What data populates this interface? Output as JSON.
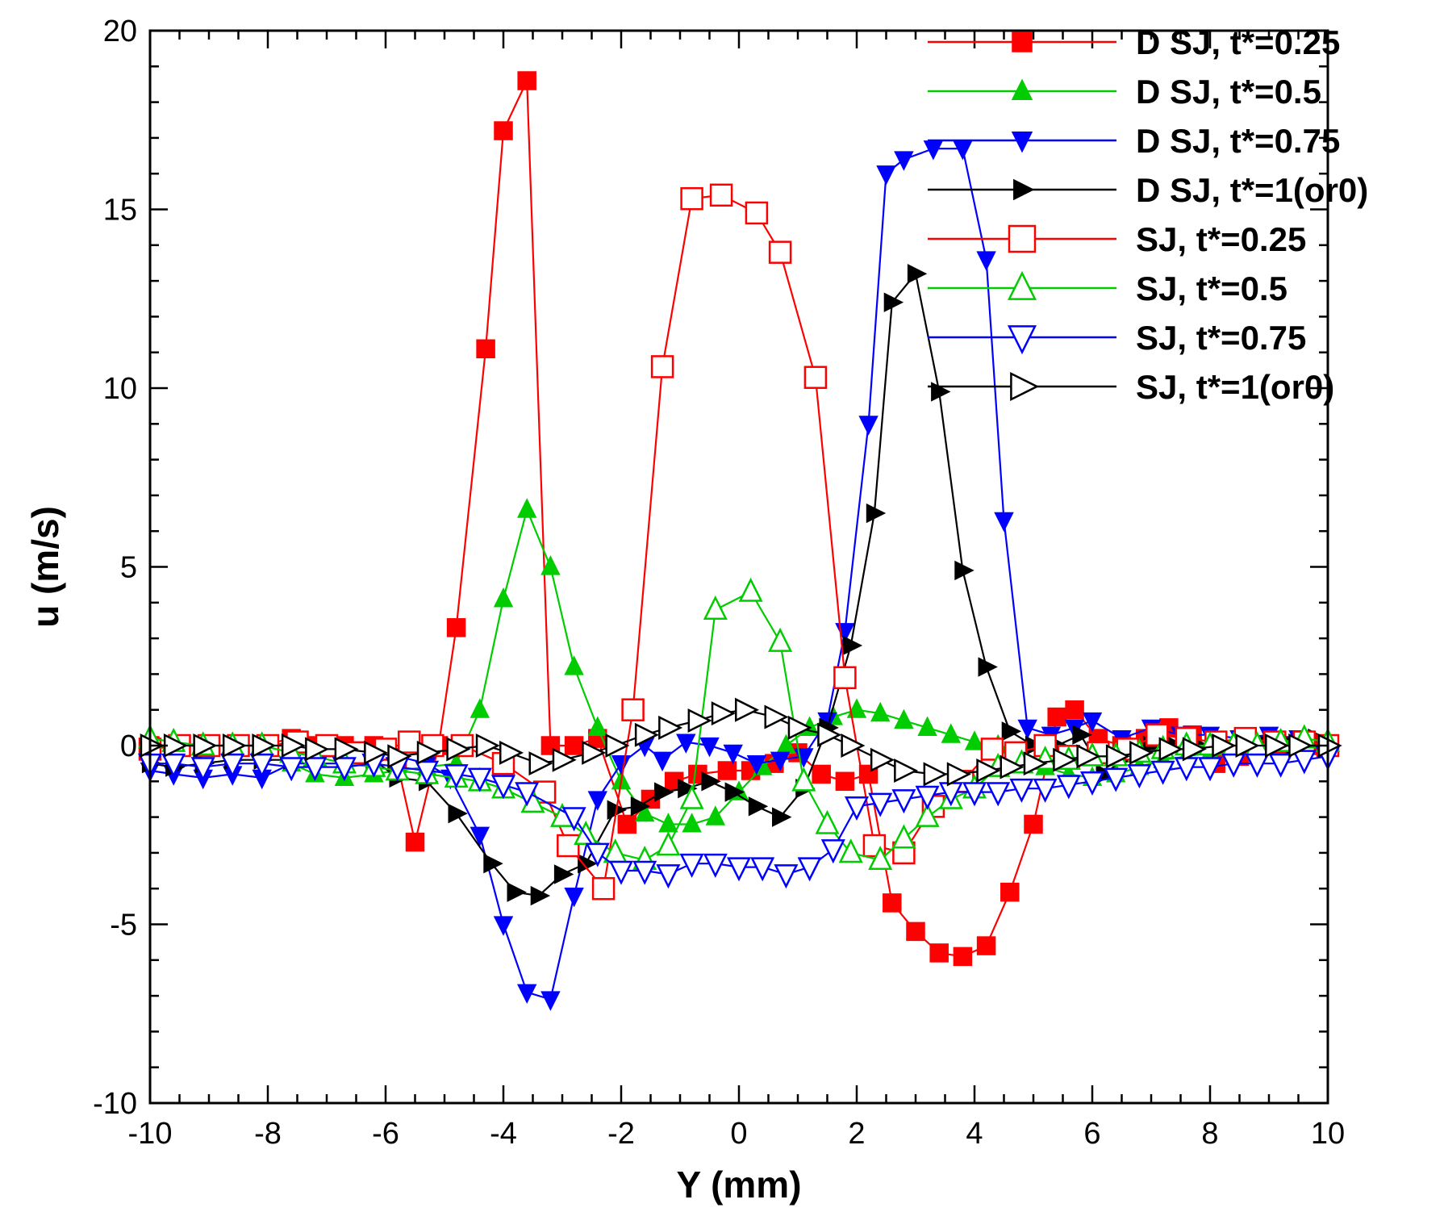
{
  "chart_data": {
    "type": "line",
    "title": "",
    "xlabel": "Y (mm)",
    "ylabel": "u (m/s)",
    "xlim": [
      -10,
      10
    ],
    "ylim": [
      -10,
      20
    ],
    "xticks": [
      -10,
      -8,
      -6,
      -4,
      -2,
      0,
      2,
      4,
      6,
      8,
      10
    ],
    "yticks": [
      -10,
      -5,
      0,
      5,
      10,
      15,
      20
    ],
    "grid": false,
    "legend_position": "top-right",
    "series": [
      {
        "name": "D SJ, t*=0.25",
        "color": "#ff0000",
        "marker": "square-filled",
        "x": [
          -10,
          -9.6,
          -9.1,
          -8.6,
          -8.1,
          -7.6,
          -7.2,
          -6.7,
          -6.2,
          -5.8,
          -5.5,
          -5.1,
          -4.8,
          -4.3,
          -4.0,
          -3.6,
          -3.2,
          -2.8,
          -2.4,
          -1.9,
          -1.5,
          -1.1,
          -0.7,
          -0.2,
          0.2,
          0.6,
          1.0,
          1.4,
          1.8,
          2.2,
          2.6,
          3.0,
          3.4,
          3.8,
          4.2,
          4.6,
          5.0,
          5.4,
          5.7,
          6.1,
          6.5,
          6.9,
          7.3,
          7.7,
          8.1,
          8.5,
          8.9,
          9.3,
          9.7,
          10
        ],
        "y": [
          0,
          0,
          0,
          0,
          0,
          0.2,
          0,
          0,
          0,
          -0.5,
          -2.7,
          0,
          3.3,
          11.1,
          17.2,
          18.6,
          0,
          0,
          0.2,
          -2.2,
          -1.5,
          -1.0,
          -0.8,
          -0.7,
          -0.7,
          -0.5,
          -0.2,
          -0.8,
          -1.0,
          -0.8,
          -4.4,
          -5.2,
          -5.8,
          -5.9,
          -5.6,
          -4.1,
          -2.2,
          0.8,
          1.0,
          0.2,
          0,
          0.2,
          0.5,
          0.3,
          -0.5,
          -0.3,
          0,
          0,
          0,
          0
        ]
      },
      {
        "name": "D SJ, t*=0.5",
        "color": "#00cc00",
        "marker": "triangle-up-filled",
        "x": [
          -10,
          -9.6,
          -9.1,
          -8.6,
          -8.1,
          -7.6,
          -7.2,
          -6.7,
          -6.2,
          -5.8,
          -5.3,
          -4.8,
          -4.4,
          -4.0,
          -3.6,
          -3.2,
          -2.8,
          -2.4,
          -2.0,
          -1.6,
          -1.2,
          -0.8,
          -0.4,
          0,
          0.4,
          0.8,
          1.2,
          1.6,
          2.0,
          2.4,
          2.8,
          3.2,
          3.6,
          4.0,
          4.4,
          4.8,
          5.2,
          5.6,
          6.0,
          6.4,
          6.8,
          7.2,
          7.6,
          8.0,
          8.4,
          8.8,
          9.2,
          9.6,
          10
        ],
        "y": [
          0,
          0,
          0,
          0,
          0,
          -0.5,
          -0.8,
          -0.9,
          -0.8,
          -0.7,
          -0.6,
          -0.5,
          1.0,
          4.1,
          6.6,
          5.0,
          2.2,
          0.5,
          -1.0,
          -1.9,
          -2.2,
          -2.2,
          -2.0,
          -1.3,
          -0.6,
          0,
          0.5,
          0.8,
          1.0,
          0.9,
          0.7,
          0.5,
          0.3,
          0.1,
          0,
          -0.4,
          -0.6,
          -0.8,
          -0.9,
          -0.8,
          -0.6,
          -0.4,
          -0.3,
          -0.2,
          -0.1,
          0,
          0,
          0,
          0
        ]
      },
      {
        "name": "D SJ, t*=0.75",
        "color": "#0000ff",
        "marker": "triangle-down-filled",
        "x": [
          -10,
          -9.6,
          -9.1,
          -8.6,
          -8.1,
          -7.6,
          -7.2,
          -6.7,
          -6.2,
          -5.8,
          -5.3,
          -4.9,
          -4.4,
          -4.0,
          -3.6,
          -3.2,
          -2.8,
          -2.4,
          -2.0,
          -1.6,
          -1.3,
          -0.9,
          -0.5,
          -0.1,
          0.3,
          0.7,
          1.1,
          1.5,
          1.8,
          2.2,
          2.5,
          2.8,
          3.3,
          3.8,
          4.2,
          4.5,
          4.9,
          5.3,
          5.7,
          6.0,
          6.5,
          7.0,
          7.5,
          8.0,
          8.5,
          9.0,
          9.5,
          10
        ],
        "y": [
          -0.7,
          -0.8,
          -0.9,
          -0.8,
          -0.9,
          -0.5,
          -0.5,
          -0.5,
          -0.3,
          -0.3,
          -0.5,
          -0.9,
          -2.5,
          -5.0,
          -6.9,
          -7.1,
          -4.2,
          -1.5,
          -0.5,
          0,
          -0.4,
          0.1,
          0,
          -0.2,
          -0.5,
          -0.4,
          -0.3,
          0.7,
          3.2,
          9.0,
          16.0,
          16.4,
          16.7,
          16.7,
          13.6,
          6.3,
          0.5,
          0.3,
          0.5,
          0.7,
          0.2,
          0.5,
          0.3,
          0.3,
          0.2,
          0.3,
          0.2,
          0
        ]
      },
      {
        "name": "D SJ, t*=1(or0)",
        "color": "#000000",
        "marker": "triangle-right-filled",
        "x": [
          -10,
          -9.6,
          -9.1,
          -8.6,
          -8.1,
          -7.6,
          -7.2,
          -6.7,
          -6.2,
          -5.8,
          -5.3,
          -4.8,
          -4.2,
          -3.8,
          -3.4,
          -3.0,
          -2.6,
          -2.1,
          -1.7,
          -1.3,
          -0.9,
          -0.5,
          -0.1,
          0.3,
          0.7,
          1.1,
          1.5,
          1.9,
          2.3,
          2.6,
          3.0,
          3.4,
          3.8,
          4.2,
          4.6,
          5.0,
          5.4,
          5.8,
          6.2,
          6.6,
          7.0,
          7.4,
          7.8,
          8.2,
          8.6,
          9.0,
          9.4,
          9.8
        ],
        "y": [
          -0.5,
          -0.6,
          -0.5,
          -0.4,
          -0.4,
          -0.4,
          -0.3,
          -0.3,
          -0.4,
          -0.9,
          -1.0,
          -1.9,
          -3.3,
          -4.1,
          -4.2,
          -3.6,
          -3.3,
          -1.8,
          -1.7,
          -1.3,
          -1.2,
          -1.0,
          -1.3,
          -1.7,
          -2.0,
          -1.2,
          0.5,
          2.8,
          6.5,
          12.4,
          13.2,
          9.9,
          4.9,
          2.2,
          0.4,
          0,
          0,
          0.3,
          -0.8,
          -0.3,
          0,
          0,
          0,
          0,
          0,
          0,
          0,
          0.2
        ]
      },
      {
        "name": "SJ, t*=0.25",
        "color": "#ff0000",
        "marker": "square-open",
        "x": [
          -10,
          -9.5,
          -9.0,
          -8.5,
          -8.0,
          -7.5,
          -7.0,
          -6.5,
          -6.0,
          -5.6,
          -5.2,
          -4.7,
          -4.0,
          -3.3,
          -2.9,
          -2.3,
          -1.8,
          -1.3,
          -0.8,
          -0.3,
          0.3,
          0.7,
          1.3,
          1.8,
          2.3,
          2.8,
          3.3,
          3.8,
          4.3,
          4.7,
          5.2,
          5.6,
          6.1,
          6.6,
          7.1,
          7.6,
          8.1,
          8.6,
          9.1,
          9.6,
          10
        ],
        "y": [
          -0.1,
          0,
          0,
          0,
          0,
          0.1,
          0,
          -0.2,
          -0.1,
          0.1,
          0,
          0,
          -0.5,
          -1.3,
          -2.8,
          -4.0,
          1.0,
          10.6,
          15.3,
          15.4,
          14.9,
          13.8,
          10.3,
          1.9,
          -2.8,
          -3.0,
          -1.7,
          -1.0,
          -0.1,
          -0.2,
          0,
          -0.3,
          -0.2,
          -0.1,
          0.3,
          0.2,
          0.1,
          0.2,
          0.1,
          0.1,
          0
        ]
      },
      {
        "name": "SJ, t*=0.5",
        "color": "#00cc00",
        "marker": "triangle-up-open",
        "x": [
          -10,
          -9.6,
          -9.1,
          -8.6,
          -8.1,
          -7.6,
          -7.2,
          -6.7,
          -6.2,
          -5.8,
          -5.3,
          -4.8,
          -4.4,
          -4.0,
          -3.5,
          -3.0,
          -2.6,
          -2.1,
          -1.6,
          -1.2,
          -0.8,
          -0.4,
          0.2,
          0.7,
          1.1,
          1.5,
          1.9,
          2.4,
          2.8,
          3.2,
          3.6,
          4.0,
          4.4,
          4.8,
          5.2,
          5.6,
          6.0,
          6.4,
          6.8,
          7.2,
          7.6,
          8.0,
          8.4,
          8.8,
          9.2,
          9.6,
          10
        ],
        "y": [
          0.2,
          0.1,
          0,
          0,
          0,
          -0.2,
          -0.3,
          -0.5,
          -0.6,
          -0.7,
          -0.8,
          -0.9,
          -1.0,
          -1.2,
          -1.6,
          -2.0,
          -2.5,
          -3.0,
          -3.2,
          -2.8,
          -1.5,
          3.8,
          4.3,
          2.9,
          -1.0,
          -2.2,
          -3.0,
          -3.2,
          -2.6,
          -2.0,
          -1.5,
          -1.2,
          -0.6,
          -0.5,
          -0.4,
          -0.4,
          -0.3,
          -0.3,
          -0.2,
          -0.1,
          0,
          0,
          0,
          0,
          0.1,
          0.2,
          0.1
        ]
      },
      {
        "name": "SJ, t*=0.75",
        "color": "#0000ff",
        "marker": "triangle-down-open",
        "x": [
          -10,
          -9.6,
          -9.1,
          -8.6,
          -8.1,
          -7.6,
          -7.2,
          -6.7,
          -6.2,
          -5.8,
          -5.3,
          -4.8,
          -4.4,
          -4.0,
          -3.6,
          -2.8,
          -2.4,
          -2.0,
          -1.6,
          -1.2,
          -0.8,
          -0.4,
          0,
          0.4,
          0.8,
          1.2,
          1.6,
          2.0,
          2.4,
          2.8,
          3.2,
          3.6,
          4.0,
          4.4,
          4.8,
          5.2,
          5.6,
          6.0,
          6.4,
          6.8,
          7.2,
          7.6,
          8.0,
          8.4,
          8.8,
          9.2,
          9.6,
          10
        ],
        "y": [
          -0.5,
          -0.5,
          -0.6,
          -0.5,
          -0.5,
          -0.6,
          -0.6,
          -0.6,
          -0.5,
          -0.6,
          -0.7,
          -0.8,
          -0.9,
          -1.1,
          -1.3,
          -2.0,
          -3.0,
          -3.5,
          -3.5,
          -3.6,
          -3.3,
          -3.3,
          -3.4,
          -3.4,
          -3.6,
          -3.4,
          -2.9,
          -1.7,
          -1.6,
          -1.5,
          -1.4,
          -1.3,
          -1.3,
          -1.3,
          -1.2,
          -1.2,
          -1.1,
          -1.0,
          -0.9,
          -0.8,
          -0.7,
          -0.6,
          -0.6,
          -0.5,
          -0.5,
          -0.5,
          -0.4,
          -0.3
        ]
      },
      {
        "name": "SJ, t*=1(or0)",
        "color": "#000000",
        "marker": "triangle-right-open",
        "x": [
          -10,
          -9.6,
          -9.1,
          -8.6,
          -8.1,
          -7.6,
          -7.2,
          -6.7,
          -6.2,
          -5.8,
          -5.3,
          -4.8,
          -4.3,
          -3.9,
          -3.4,
          -3.0,
          -2.5,
          -2.1,
          -1.6,
          -1.2,
          -0.7,
          -0.3,
          0.1,
          0.6,
          1.0,
          1.5,
          1.9,
          2.4,
          2.8,
          3.3,
          3.7,
          4.2,
          4.6,
          5.0,
          5.5,
          5.9,
          6.4,
          6.8,
          7.3,
          7.7,
          8.2,
          8.6,
          9.1,
          9.5,
          10
        ],
        "y": [
          0,
          0,
          0,
          0,
          0,
          0,
          -0.1,
          -0.1,
          -0.2,
          -0.3,
          -0.2,
          -0.1,
          0,
          -0.2,
          -0.5,
          -0.4,
          -0.2,
          0,
          0.3,
          0.5,
          0.7,
          0.9,
          1.0,
          0.8,
          0.5,
          0.3,
          0,
          -0.4,
          -0.7,
          -0.8,
          -0.8,
          -0.7,
          -0.6,
          -0.5,
          -0.4,
          -0.3,
          -0.3,
          -0.2,
          -0.1,
          -0.1,
          0,
          0,
          0,
          0,
          0
        ]
      }
    ]
  }
}
